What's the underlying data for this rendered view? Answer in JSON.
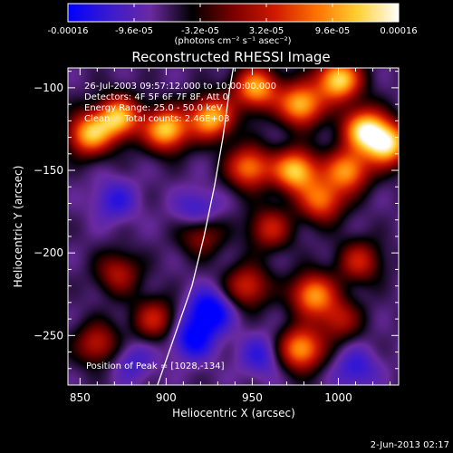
{
  "colorbar": {
    "tick_labels": [
      "-0.00016",
      "-9.6e-05",
      "-3.2e-05",
      "3.2e-05",
      "9.6e-05",
      "0.00016"
    ],
    "tick_values": [
      -0.00016,
      -9.6e-05,
      -3.2e-05,
      3.2e-05,
      9.6e-05,
      0.00016
    ],
    "unit_label": "(photons cm⁻² s⁻¹ asec⁻²)",
    "colors": [
      "#0000ff",
      "#3a1ad0",
      "#6a2aa0",
      "#000000",
      "#7a0000",
      "#d01800",
      "#ff7000",
      "#ffd030",
      "#ffffff"
    ]
  },
  "chart_data": {
    "type": "heatmap",
    "title": "Reconstructed RHESSI Image",
    "xlabel": "Heliocentric X (arcsec)",
    "ylabel": "Heliocentric Y (arcsec)",
    "xlim": [
      843,
      1035
    ],
    "ylim": [
      -280,
      -88
    ],
    "x_ticks": [
      850,
      900,
      950,
      1000
    ],
    "y_ticks": [
      -100,
      -150,
      -200,
      -250
    ],
    "x_tick_labels": [
      "850",
      "900",
      "950",
      "1000"
    ],
    "y_tick_labels": [
      "−100",
      "−150",
      "−200",
      "−250"
    ],
    "annotations": [
      "26-Jul-2003 09:57:12.000 to 10:00:00.000",
      "Detectors: 4F 5F 6F 7F 8F, Att 0",
      "Energy Range: 25.0 - 50.0 keV",
      "Clean     Total counts: 2.46E+03"
    ],
    "peak_label": "Position of Peak = [1028,-134]",
    "peak_position": [
      1028,
      -134
    ],
    "limb_curve": [
      [
        895,
        -280
      ],
      [
        905,
        -250
      ],
      [
        915,
        -220
      ],
      [
        922,
        -190
      ],
      [
        928,
        -160
      ],
      [
        933,
        -130
      ],
      [
        937,
        -100
      ],
      [
        939,
        -88
      ]
    ],
    "sources": [
      {
        "x": 855,
        "y": -128,
        "strength": 0.85
      },
      {
        "x": 872,
        "y": -118,
        "strength": 0.9
      },
      {
        "x": 900,
        "y": -125,
        "strength": 0.95
      },
      {
        "x": 926,
        "y": -118,
        "strength": 0.9
      },
      {
        "x": 952,
        "y": -100,
        "strength": 0.85
      },
      {
        "x": 978,
        "y": -110,
        "strength": 0.9
      },
      {
        "x": 1000,
        "y": -95,
        "strength": 1.0
      },
      {
        "x": 1028,
        "y": -134,
        "strength": 1.0
      },
      {
        "x": 1015,
        "y": -125,
        "strength": 0.95
      },
      {
        "x": 1005,
        "y": -150,
        "strength": 0.8
      },
      {
        "x": 975,
        "y": -150,
        "strength": 0.95
      },
      {
        "x": 948,
        "y": -148,
        "strength": 0.75
      },
      {
        "x": 990,
        "y": -168,
        "strength": 0.7
      },
      {
        "x": 960,
        "y": -185,
        "strength": 0.5
      },
      {
        "x": 985,
        "y": -225,
        "strength": 0.8
      },
      {
        "x": 978,
        "y": -258,
        "strength": 0.85
      },
      {
        "x": 1012,
        "y": -205,
        "strength": 0.5
      },
      {
        "x": 1000,
        "y": -240,
        "strength": 0.45
      },
      {
        "x": 947,
        "y": -220,
        "strength": 0.55
      },
      {
        "x": 920,
        "y": -188,
        "strength": 0.45
      },
      {
        "x": 893,
        "y": -240,
        "strength": 0.5
      },
      {
        "x": 872,
        "y": -212,
        "strength": 0.45
      },
      {
        "x": 860,
        "y": -255,
        "strength": 0.5
      },
      {
        "x": 918,
        "y": -175,
        "strength": -0.35
      },
      {
        "x": 925,
        "y": -235,
        "strength": -0.55
      },
      {
        "x": 915,
        "y": -252,
        "strength": -0.45
      },
      {
        "x": 870,
        "y": -168,
        "strength": -0.3
      },
      {
        "x": 1010,
        "y": -270,
        "strength": -0.3
      },
      {
        "x": 955,
        "y": -262,
        "strength": -0.3
      },
      {
        "x": 880,
        "y": -265,
        "strength": -0.25
      }
    ]
  },
  "footer": {
    "date_stamp": "2-Jun-2013 02:17"
  }
}
